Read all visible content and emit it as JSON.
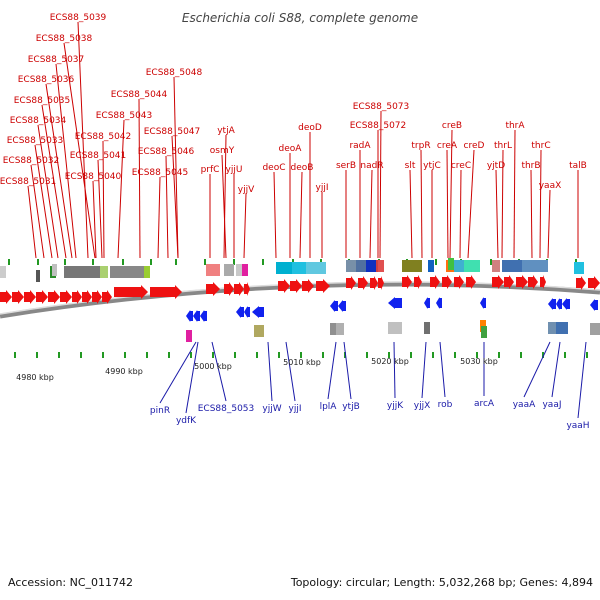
{
  "title": "Escherichia coli S88, complete genome",
  "footer": {
    "accession": "Accession: NC_011742",
    "summary": "Topology: circular; Length: 5,032,268 bp; Genes: 4,894"
  },
  "scale_labels": [
    "4980 kbp",
    "4990 kbp",
    "5000 kbp",
    "5010 kbp",
    "5020 kbp",
    "5030 kbp"
  ],
  "top_labels": [
    "ECS88_5039",
    "ECS88_5038",
    "ECS88_5037",
    "ECS88_5036",
    "ECS88_5035",
    "ECS88_5034",
    "ECS88_5033",
    "ECS88_5032",
    "ECS88_5031",
    "ECS88_5048",
    "ECS88_5044",
    "ECS88_5043",
    "ECS88_5042",
    "ECS88_5041",
    "ECS88_5040",
    "ECS88_5047",
    "ECS88_5046",
    "ECS88_5045",
    "ytjA",
    "osmY",
    "prfC",
    "yjjU",
    "yjjV",
    "deoD",
    "deoA",
    "deoC",
    "deoB",
    "yjjI",
    "ECS88_5073",
    "ECS88_5072",
    "radA",
    "serB",
    "nadR",
    "trpR",
    "slt",
    "ytjC",
    "creB",
    "creA",
    "creC",
    "creD",
    "thrA",
    "thrL",
    "yjtD",
    "thrC",
    "thrB",
    "yaaX",
    "talB"
  ],
  "bottom_labels": [
    "pinR",
    "ydfK",
    "ECS88_5053",
    "yjjW",
    "yjjI",
    "lplA",
    "ytjB",
    "yjjK",
    "yjjX",
    "rob",
    "arcA",
    "yaaA",
    "yaaJ",
    "yaaH"
  ],
  "colors": {
    "gene_red": "#ee1111",
    "gene_blue": "#1122ee",
    "top_label": "#cc0000",
    "bottom_label": "#1a1aa8",
    "tick": "#229922"
  }
}
